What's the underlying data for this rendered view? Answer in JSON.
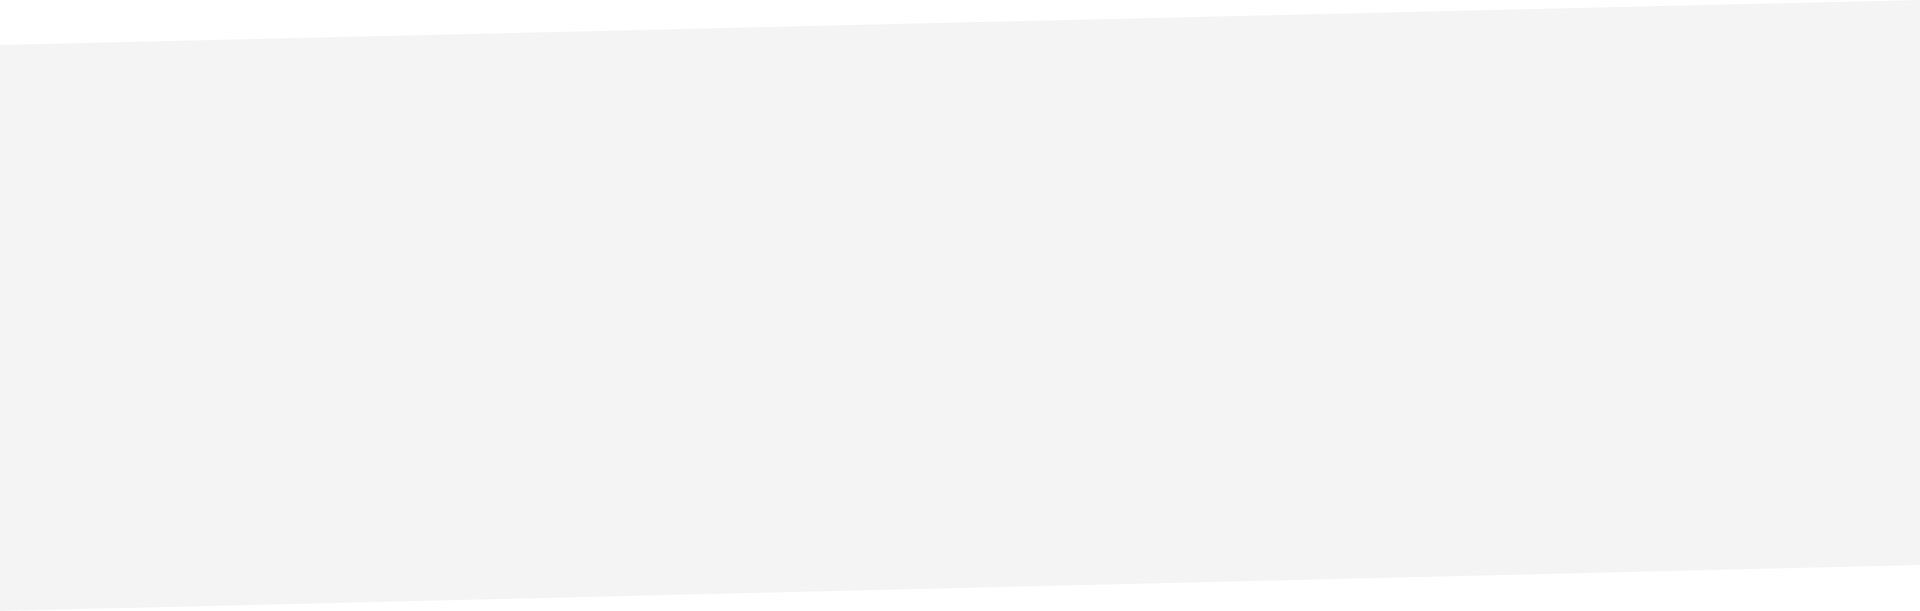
{
  "section": {
    "band_color": "#f4f4f4",
    "background_color": "#ffffff"
  }
}
